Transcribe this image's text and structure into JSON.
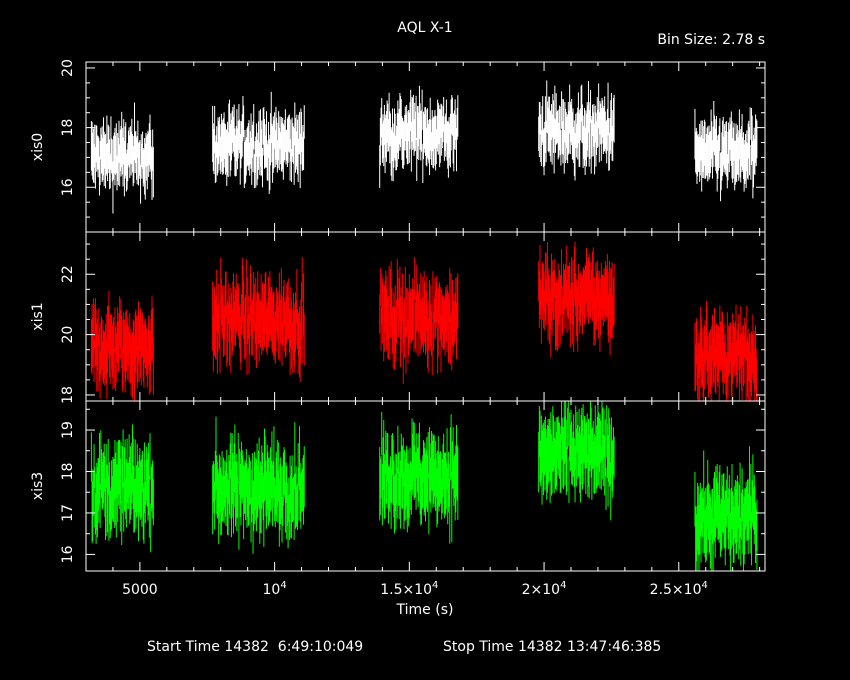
{
  "chart_data": {
    "type": "scatter",
    "title": "AQL X-1",
    "bin_size": "Bin Size: 2.78 s",
    "xlabel": "Time (s)",
    "xlim": [
      3000,
      28200
    ],
    "x_ticks": [
      {
        "value": 5000,
        "label": "5000"
      },
      {
        "value": 10000,
        "label": "10",
        "exp": "4"
      },
      {
        "value": 15000,
        "label": "1.5×10",
        "exp": "4"
      },
      {
        "value": 20000,
        "label": "2×10",
        "exp": "4"
      },
      {
        "value": 25000,
        "label": "2.5×10",
        "exp": "4"
      }
    ],
    "x_minor_step": 1000,
    "segments": [
      [
        3200,
        5500
      ],
      [
        7700,
        11100
      ],
      [
        13900,
        16800
      ],
      [
        19800,
        22600
      ],
      [
        25600,
        27900
      ]
    ],
    "panels": [
      {
        "name": "xis0",
        "color": "#ffffff",
        "ylim": [
          14.5,
          20.2
        ],
        "y_ticks": [
          16,
          18,
          20
        ],
        "y_minor_step": 0.5,
        "seg_levels": [
          17.0,
          17.4,
          17.8,
          17.9,
          17.1
        ],
        "noise": 0.55,
        "err": 0.75
      },
      {
        "name": "xis1",
        "color": "#ff0000",
        "ylim": [
          17.8,
          23.4
        ],
        "y_ticks": [
          18,
          20,
          22
        ],
        "y_minor_step": 0.5,
        "seg_levels": [
          19.6,
          20.5,
          20.6,
          21.2,
          19.3
        ],
        "noise": 0.65,
        "err": 0.9
      },
      {
        "name": "xis3",
        "color": "#00ff00",
        "ylim": [
          15.6,
          19.7
        ],
        "y_ticks": [
          16,
          17,
          18,
          19
        ],
        "y_minor_step": 0.5,
        "seg_levels": [
          17.6,
          17.6,
          17.9,
          18.4,
          16.9
        ],
        "noise": 0.5,
        "err": 0.7
      }
    ]
  },
  "footer": {
    "start_label": "Start Time 14382  6:49:10:049",
    "stop_label": "Stop Time 14382 13:47:46:385"
  }
}
